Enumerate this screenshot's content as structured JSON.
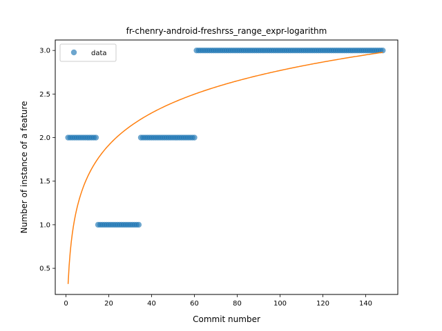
{
  "chart_data": {
    "type": "scatter",
    "title": "fr-chenry-android-freshrss_range_expr-logarithm",
    "xlabel": "Commit number",
    "ylabel": "Number of instance of a feature",
    "xlim": [
      -5,
      155
    ],
    "ylim": [
      0.2,
      3.12
    ],
    "xticks": [
      0,
      20,
      40,
      60,
      80,
      100,
      120,
      140
    ],
    "xtick_labels": [
      "0",
      "20",
      "40",
      "60",
      "80",
      "100",
      "120",
      "140"
    ],
    "yticks": [
      0.5,
      1.0,
      1.5,
      2.0,
      2.5,
      3.0
    ],
    "ytick_labels": [
      "0.5",
      "1.0",
      "1.5",
      "2.0",
      "2.5",
      "3.0"
    ],
    "grid": false,
    "legend": {
      "position": "upper-left",
      "entries": [
        "data"
      ]
    },
    "colors": {
      "data": "#1f77b4",
      "fit": "#ff7f0e"
    },
    "series": [
      {
        "name": "data",
        "kind": "scatter",
        "segments": [
          {
            "x_start": 1,
            "x_end": 14,
            "y": 2
          },
          {
            "x_start": 15,
            "x_end": 34,
            "y": 1
          },
          {
            "x_start": 35,
            "x_end": 60,
            "y": 2
          },
          {
            "x_start": 61,
            "x_end": 148,
            "y": 3
          }
        ]
      },
      {
        "kind": "line",
        "model": "logarithmic",
        "x_range": [
          1,
          148
        ],
        "coefficients": {
          "a": 0.32,
          "b": 0.532
        }
      }
    ]
  }
}
